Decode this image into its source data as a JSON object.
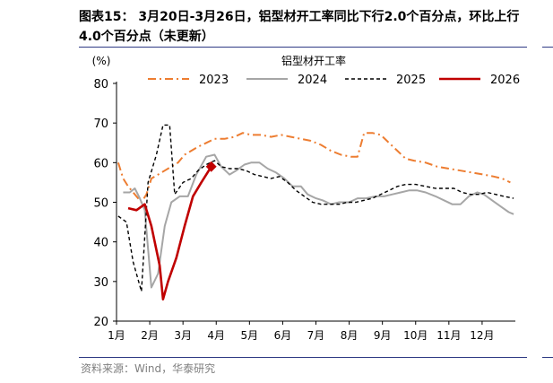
{
  "figure": {
    "title": "图表15： 3月20日-3月26日，铝型材开工率同比下行2.0个百分点，环比上行4.0个百分点（未更新）",
    "source": "资料来源：Wind，华泰研究"
  },
  "chart_data": {
    "type": "line",
    "title": "铝型材开工率",
    "ylabel": "(%)",
    "ylim": [
      20,
      80
    ],
    "yticks": [
      20,
      30,
      40,
      50,
      60,
      70,
      80
    ],
    "xlim": [
      1,
      13
    ],
    "xticks": [
      {
        "label": "1月",
        "x": 1
      },
      {
        "label": "2月",
        "x": 2
      },
      {
        "label": "3月",
        "x": 3
      },
      {
        "label": "4月",
        "x": 4
      },
      {
        "label": "5月",
        "x": 5
      },
      {
        "label": "6月",
        "x": 6
      },
      {
        "label": "7月",
        "x": 7
      },
      {
        "label": "8月",
        "x": 8
      },
      {
        "label": "9月",
        "x": 9
      },
      {
        "label": "10月",
        "x": 10
      },
      {
        "label": "11月",
        "x": 11
      },
      {
        "label": "12月",
        "x": 12
      }
    ],
    "grid": false,
    "legend_position": "top",
    "series": [
      {
        "name": "2023",
        "color": "#ed7d31",
        "style": "dashdot",
        "points": [
          [
            1.05,
            60
          ],
          [
            1.2,
            56
          ],
          [
            1.35,
            54
          ],
          [
            1.55,
            52
          ],
          [
            1.75,
            50
          ],
          [
            1.9,
            52
          ],
          [
            2.05,
            56
          ],
          [
            2.25,
            57
          ],
          [
            2.45,
            58
          ],
          [
            2.65,
            59
          ],
          [
            2.85,
            60
          ],
          [
            3.05,
            62
          ],
          [
            3.25,
            63
          ],
          [
            3.45,
            64
          ],
          [
            3.7,
            65
          ],
          [
            3.95,
            66
          ],
          [
            4.25,
            66
          ],
          [
            4.55,
            66.5
          ],
          [
            4.8,
            67.5
          ],
          [
            5.05,
            67
          ],
          [
            5.35,
            67
          ],
          [
            5.65,
            66.5
          ],
          [
            5.95,
            67
          ],
          [
            6.25,
            66.5
          ],
          [
            6.55,
            66
          ],
          [
            6.85,
            65.5
          ],
          [
            7.15,
            64.5
          ],
          [
            7.45,
            63
          ],
          [
            7.75,
            62
          ],
          [
            8.05,
            61.5
          ],
          [
            8.25,
            61.5
          ],
          [
            8.45,
            67.5
          ],
          [
            8.7,
            67.5
          ],
          [
            8.95,
            67
          ],
          [
            9.2,
            65
          ],
          [
            9.45,
            63
          ],
          [
            9.7,
            61
          ],
          [
            9.95,
            60.5
          ],
          [
            10.3,
            60
          ],
          [
            10.65,
            59
          ],
          [
            11.0,
            58.5
          ],
          [
            11.35,
            58
          ],
          [
            11.7,
            57.5
          ],
          [
            12.05,
            57
          ],
          [
            12.35,
            56.5
          ],
          [
            12.6,
            56
          ],
          [
            12.85,
            55
          ]
        ]
      },
      {
        "name": "2024",
        "color": "#a6a6a6",
        "style": "solid",
        "points": [
          [
            1.2,
            52.5
          ],
          [
            1.4,
            52.5
          ],
          [
            1.55,
            53.5
          ],
          [
            1.7,
            51
          ],
          [
            1.85,
            48
          ],
          [
            2.05,
            28.5
          ],
          [
            2.25,
            32
          ],
          [
            2.45,
            44
          ],
          [
            2.65,
            50
          ],
          [
            2.9,
            51.5
          ],
          [
            3.15,
            51.5
          ],
          [
            3.4,
            57
          ],
          [
            3.7,
            61.5
          ],
          [
            3.95,
            62
          ],
          [
            4.15,
            59
          ],
          [
            4.4,
            57
          ],
          [
            4.6,
            58
          ],
          [
            4.85,
            59.5
          ],
          [
            5.05,
            60
          ],
          [
            5.3,
            60
          ],
          [
            5.55,
            58.5
          ],
          [
            5.8,
            57.5
          ],
          [
            6.05,
            56
          ],
          [
            6.3,
            54
          ],
          [
            6.55,
            54
          ],
          [
            6.75,
            52
          ],
          [
            7.0,
            51
          ],
          [
            7.2,
            50.5
          ],
          [
            7.45,
            49.5
          ],
          [
            7.7,
            50
          ],
          [
            8.0,
            50
          ],
          [
            8.25,
            51
          ],
          [
            8.5,
            51
          ],
          [
            8.8,
            51.5
          ],
          [
            9.05,
            51.5
          ],
          [
            9.3,
            52
          ],
          [
            9.55,
            52.5
          ],
          [
            9.8,
            53
          ],
          [
            10.05,
            53
          ],
          [
            10.3,
            52.5
          ],
          [
            10.6,
            51.5
          ],
          [
            10.85,
            50.5
          ],
          [
            11.1,
            49.5
          ],
          [
            11.35,
            49.5
          ],
          [
            11.6,
            51.5
          ],
          [
            11.85,
            52.5
          ],
          [
            12.05,
            52
          ],
          [
            12.3,
            50.5
          ],
          [
            12.55,
            49
          ],
          [
            12.8,
            47.5
          ],
          [
            12.95,
            47
          ]
        ]
      },
      {
        "name": "2025",
        "color": "#000000",
        "style": "dashed",
        "points": [
          [
            1.05,
            46.5
          ],
          [
            1.3,
            45
          ],
          [
            1.5,
            35
          ],
          [
            1.75,
            27.5
          ],
          [
            1.95,
            55
          ],
          [
            2.2,
            62
          ],
          [
            2.4,
            69.5
          ],
          [
            2.6,
            69.5
          ],
          [
            2.75,
            52
          ],
          [
            3.0,
            55
          ],
          [
            3.25,
            56
          ],
          [
            3.45,
            58
          ],
          [
            3.7,
            59.5
          ],
          [
            3.95,
            60.5
          ],
          [
            4.15,
            59
          ],
          [
            4.4,
            58.5
          ],
          [
            4.65,
            58.5
          ],
          [
            4.9,
            58
          ],
          [
            5.15,
            57
          ],
          [
            5.4,
            56.5
          ],
          [
            5.65,
            56
          ],
          [
            5.9,
            56.5
          ],
          [
            6.15,
            55
          ],
          [
            6.4,
            53
          ],
          [
            6.65,
            51.5
          ],
          [
            6.9,
            50
          ],
          [
            7.15,
            49.5
          ],
          [
            7.4,
            49.5
          ],
          [
            7.7,
            49.5
          ],
          [
            7.95,
            50
          ],
          [
            8.2,
            50
          ],
          [
            8.45,
            50.5
          ],
          [
            8.7,
            51
          ],
          [
            8.95,
            52
          ],
          [
            9.2,
            53
          ],
          [
            9.45,
            54
          ],
          [
            9.7,
            54.5
          ],
          [
            10.0,
            54.5
          ],
          [
            10.3,
            54
          ],
          [
            10.6,
            53.5
          ],
          [
            10.9,
            53.5
          ],
          [
            11.15,
            53.5
          ],
          [
            11.4,
            52.5
          ],
          [
            11.65,
            52
          ],
          [
            11.9,
            52
          ],
          [
            12.15,
            52.5
          ],
          [
            12.4,
            52
          ],
          [
            12.65,
            51.5
          ],
          [
            12.95,
            51
          ]
        ]
      },
      {
        "name": "2026",
        "color": "#c00000",
        "style": "solid",
        "points": [
          [
            1.35,
            48.5
          ],
          [
            1.6,
            48
          ],
          [
            1.85,
            49.5
          ],
          [
            2.05,
            44
          ],
          [
            2.3,
            34
          ],
          [
            2.4,
            25.5
          ],
          [
            2.55,
            30
          ],
          [
            2.8,
            36
          ],
          [
            3.05,
            44
          ],
          [
            3.3,
            51.5
          ],
          [
            3.55,
            55
          ],
          [
            3.85,
            59
          ]
        ],
        "highlight_point": [
          3.85,
          59
        ]
      }
    ]
  }
}
